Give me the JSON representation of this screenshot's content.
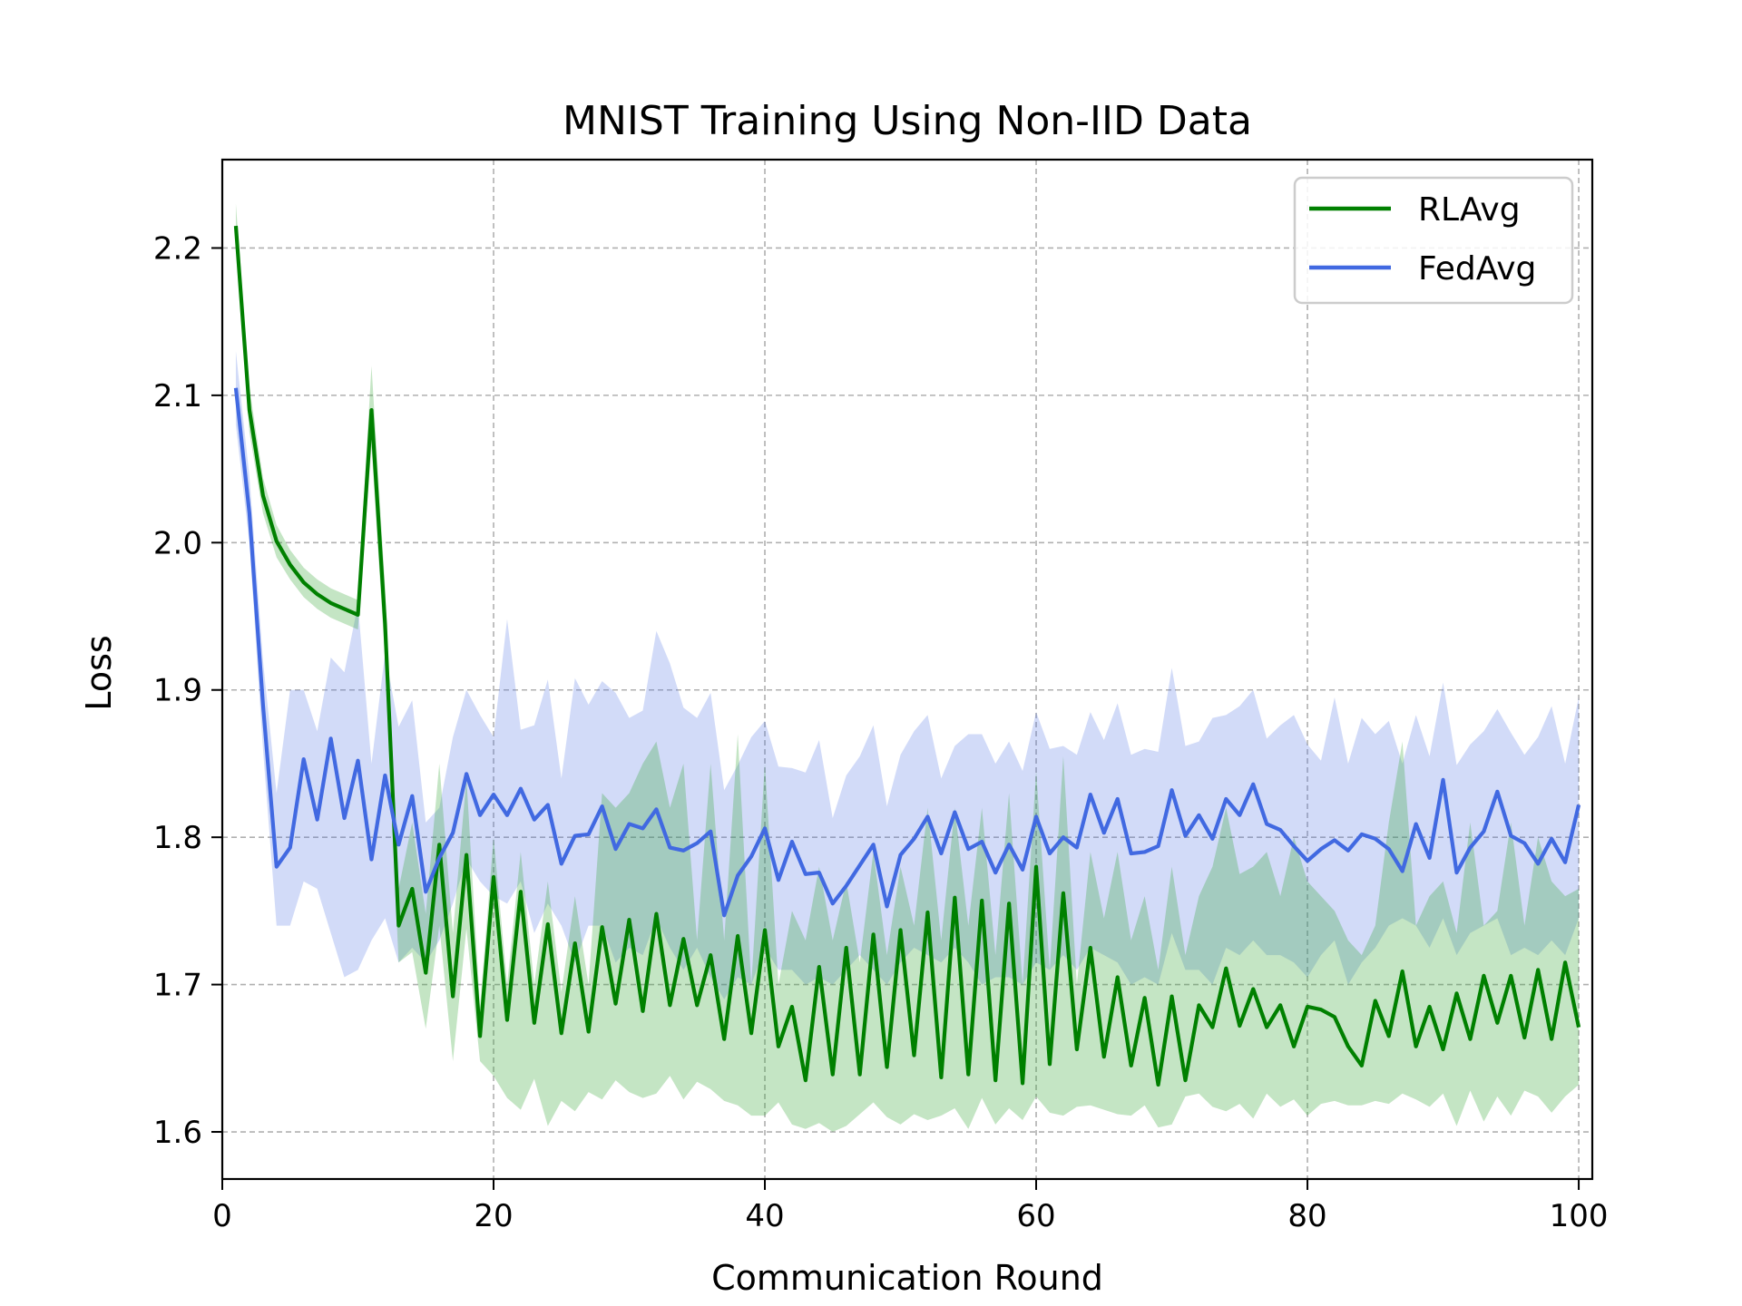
{
  "chart_data": {
    "type": "line",
    "title": "MNIST Training Using Non-IID Data",
    "xlabel": "Communication Round",
    "ylabel": "Loss",
    "xlim": [
      0,
      101
    ],
    "ylim": [
      1.568,
      2.26
    ],
    "xticks": [
      0,
      20,
      40,
      60,
      80,
      100
    ],
    "yticks": [
      1.6,
      1.7,
      1.8,
      1.9,
      2.0,
      2.1,
      2.2
    ],
    "ytick_labels": [
      "1.6",
      "1.7",
      "1.8",
      "1.9",
      "2.0",
      "2.1",
      "2.2"
    ],
    "grid": true,
    "legend_position": "top-right",
    "x": [
      1,
      2,
      3,
      4,
      5,
      6,
      7,
      8,
      9,
      10,
      11,
      12,
      13,
      14,
      15,
      16,
      17,
      18,
      19,
      20,
      21,
      22,
      23,
      24,
      25,
      26,
      27,
      28,
      29,
      30,
      31,
      32,
      33,
      34,
      35,
      36,
      37,
      38,
      39,
      40,
      41,
      42,
      43,
      44,
      45,
      46,
      47,
      48,
      49,
      50,
      51,
      52,
      53,
      54,
      55,
      56,
      57,
      58,
      59,
      60,
      61,
      62,
      63,
      64,
      65,
      66,
      67,
      68,
      69,
      70,
      71,
      72,
      73,
      74,
      75,
      76,
      77,
      78,
      79,
      80,
      81,
      82,
      83,
      84,
      85,
      86,
      87,
      88,
      89,
      90,
      91,
      92,
      93,
      94,
      95,
      96,
      97,
      98,
      99,
      100
    ],
    "series": [
      {
        "name": "RLAvg",
        "color": "#008000",
        "band_color": "#2ca02c",
        "values": [
          2.215,
          2.09,
          2.032,
          2.001,
          1.985,
          1.973,
          1.965,
          1.959,
          1.955,
          1.951,
          2.09,
          1.945,
          1.74,
          1.765,
          1.708,
          1.795,
          1.692,
          1.788,
          1.665,
          1.773,
          1.676,
          1.763,
          1.674,
          1.741,
          1.667,
          1.728,
          1.668,
          1.739,
          1.687,
          1.744,
          1.682,
          1.748,
          1.686,
          1.731,
          1.686,
          1.72,
          1.663,
          1.733,
          1.667,
          1.737,
          1.658,
          1.685,
          1.635,
          1.712,
          1.639,
          1.725,
          1.639,
          1.734,
          1.644,
          1.737,
          1.652,
          1.749,
          1.637,
          1.759,
          1.639,
          1.757,
          1.635,
          1.755,
          1.633,
          1.78,
          1.646,
          1.762,
          1.656,
          1.725,
          1.651,
          1.705,
          1.645,
          1.691,
          1.632,
          1.692,
          1.635,
          1.686,
          1.671,
          1.711,
          1.672,
          1.697,
          1.671,
          1.686,
          1.658,
          1.685,
          1.683,
          1.678,
          1.658,
          1.645,
          1.689,
          1.665,
          1.709,
          1.658,
          1.685,
          1.656,
          1.694,
          1.663,
          1.706,
          1.674,
          1.706,
          1.664,
          1.71,
          1.663,
          1.715,
          1.671
        ],
        "lower": [
          2.2,
          2.075,
          2.02,
          1.99,
          1.975,
          1.963,
          1.955,
          1.949,
          1.945,
          1.941,
          2.065,
          1.92,
          1.715,
          1.722,
          1.67,
          1.74,
          1.648,
          1.738,
          1.648,
          1.638,
          1.623,
          1.615,
          1.636,
          1.604,
          1.621,
          1.614,
          1.627,
          1.622,
          1.635,
          1.627,
          1.623,
          1.626,
          1.638,
          1.622,
          1.634,
          1.629,
          1.621,
          1.618,
          1.611,
          1.611,
          1.62,
          1.605,
          1.602,
          1.606,
          1.6,
          1.604,
          1.612,
          1.62,
          1.61,
          1.605,
          1.612,
          1.608,
          1.611,
          1.616,
          1.602,
          1.623,
          1.605,
          1.616,
          1.608,
          1.624,
          1.613,
          1.611,
          1.617,
          1.618,
          1.615,
          1.612,
          1.611,
          1.618,
          1.603,
          1.605,
          1.624,
          1.626,
          1.617,
          1.614,
          1.619,
          1.609,
          1.626,
          1.617,
          1.622,
          1.611,
          1.619,
          1.621,
          1.618,
          1.618,
          1.621,
          1.619,
          1.626,
          1.622,
          1.617,
          1.626,
          1.604,
          1.628,
          1.607,
          1.624,
          1.611,
          1.628,
          1.624,
          1.613,
          1.624,
          1.632
        ],
        "upper": [
          2.23,
          2.105,
          2.044,
          2.012,
          1.995,
          1.983,
          1.975,
          1.969,
          1.965,
          1.961,
          2.12,
          1.97,
          1.765,
          1.81,
          1.748,
          1.85,
          1.735,
          1.84,
          1.685,
          1.8,
          1.7,
          1.79,
          1.7,
          1.77,
          1.695,
          1.76,
          1.7,
          1.83,
          1.82,
          1.83,
          1.85,
          1.865,
          1.82,
          1.85,
          1.73,
          1.85,
          1.73,
          1.87,
          1.7,
          1.85,
          1.7,
          1.75,
          1.73,
          1.78,
          1.73,
          1.77,
          1.715,
          1.79,
          1.72,
          1.78,
          1.74,
          1.82,
          1.73,
          1.82,
          1.74,
          1.82,
          1.72,
          1.83,
          1.7,
          1.845,
          1.71,
          1.855,
          1.7,
          1.79,
          1.745,
          1.79,
          1.73,
          1.76,
          1.71,
          1.78,
          1.72,
          1.76,
          1.78,
          1.82,
          1.775,
          1.78,
          1.79,
          1.76,
          1.8,
          1.77,
          1.76,
          1.75,
          1.73,
          1.72,
          1.74,
          1.81,
          1.865,
          1.74,
          1.76,
          1.77,
          1.735,
          1.81,
          1.74,
          1.75,
          1.81,
          1.74,
          1.8,
          1.77,
          1.76,
          1.765
        ]
      },
      {
        "name": "FedAvg",
        "color": "#4169e1",
        "band_color": "#4169e1",
        "values": [
          2.105,
          2.02,
          1.89,
          1.78,
          1.793,
          1.853,
          1.812,
          1.867,
          1.813,
          1.852,
          1.785,
          1.842,
          1.795,
          1.828,
          1.763,
          1.786,
          1.803,
          1.843,
          1.815,
          1.829,
          1.815,
          1.833,
          1.812,
          1.822,
          1.782,
          1.801,
          1.802,
          1.821,
          1.792,
          1.809,
          1.806,
          1.819,
          1.793,
          1.791,
          1.796,
          1.804,
          1.747,
          1.774,
          1.787,
          1.806,
          1.771,
          1.797,
          1.775,
          1.776,
          1.755,
          1.767,
          1.781,
          1.795,
          1.753,
          1.788,
          1.799,
          1.814,
          1.789,
          1.817,
          1.792,
          1.797,
          1.776,
          1.795,
          1.778,
          1.814,
          1.789,
          1.8,
          1.793,
          1.829,
          1.803,
          1.826,
          1.789,
          1.79,
          1.794,
          1.832,
          1.801,
          1.815,
          1.799,
          1.826,
          1.815,
          1.836,
          1.809,
          1.805,
          1.794,
          1.784,
          1.792,
          1.798,
          1.791,
          1.802,
          1.799,
          1.792,
          1.777,
          1.809,
          1.786,
          1.839,
          1.776,
          1.793,
          1.804,
          1.831,
          1.801,
          1.796,
          1.782,
          1.799,
          1.783,
          1.822
        ],
        "lower": [
          2.08,
          2.0,
          1.86,
          1.74,
          1.74,
          1.77,
          1.765,
          1.735,
          1.705,
          1.71,
          1.73,
          1.745,
          1.715,
          1.725,
          1.715,
          1.73,
          1.755,
          1.785,
          1.77,
          1.76,
          1.755,
          1.77,
          1.735,
          1.755,
          1.74,
          1.715,
          1.74,
          1.74,
          1.715,
          1.725,
          1.72,
          1.745,
          1.725,
          1.71,
          1.725,
          1.705,
          1.69,
          1.705,
          1.7,
          1.725,
          1.71,
          1.71,
          1.7,
          1.705,
          1.7,
          1.71,
          1.72,
          1.71,
          1.7,
          1.715,
          1.725,
          1.72,
          1.715,
          1.725,
          1.715,
          1.7,
          1.705,
          1.705,
          1.7,
          1.715,
          1.71,
          1.72,
          1.71,
          1.725,
          1.72,
          1.715,
          1.7,
          1.705,
          1.7,
          1.735,
          1.71,
          1.71,
          1.7,
          1.725,
          1.72,
          1.73,
          1.72,
          1.72,
          1.715,
          1.705,
          1.72,
          1.73,
          1.7,
          1.715,
          1.725,
          1.74,
          1.745,
          1.74,
          1.725,
          1.745,
          1.72,
          1.735,
          1.74,
          1.745,
          1.72,
          1.725,
          1.72,
          1.73,
          1.72,
          1.745
        ],
        "upper": [
          2.13,
          2.045,
          1.92,
          1.83,
          1.9,
          1.9,
          1.872,
          1.922,
          1.912,
          1.958,
          1.85,
          1.925,
          1.875,
          1.893,
          1.81,
          1.82,
          1.868,
          1.9,
          1.883,
          1.868,
          1.948,
          1.873,
          1.876,
          1.907,
          1.84,
          1.908,
          1.89,
          1.906,
          1.898,
          1.881,
          1.886,
          1.94,
          1.918,
          1.888,
          1.881,
          1.898,
          1.832,
          1.849,
          1.868,
          1.879,
          1.848,
          1.847,
          1.844,
          1.866,
          1.813,
          1.842,
          1.855,
          1.876,
          1.821,
          1.856,
          1.872,
          1.883,
          1.84,
          1.862,
          1.87,
          1.87,
          1.85,
          1.865,
          1.845,
          1.885,
          1.86,
          1.862,
          1.856,
          1.885,
          1.866,
          1.891,
          1.856,
          1.86,
          1.858,
          1.915,
          1.862,
          1.865,
          1.881,
          1.883,
          1.889,
          1.9,
          1.867,
          1.876,
          1.883,
          1.863,
          1.852,
          1.895,
          1.85,
          1.881,
          1.87,
          1.879,
          1.85,
          1.883,
          1.855,
          1.905,
          1.849,
          1.863,
          1.872,
          1.887,
          1.871,
          1.856,
          1.868,
          1.889,
          1.85,
          1.895
        ]
      }
    ]
  }
}
